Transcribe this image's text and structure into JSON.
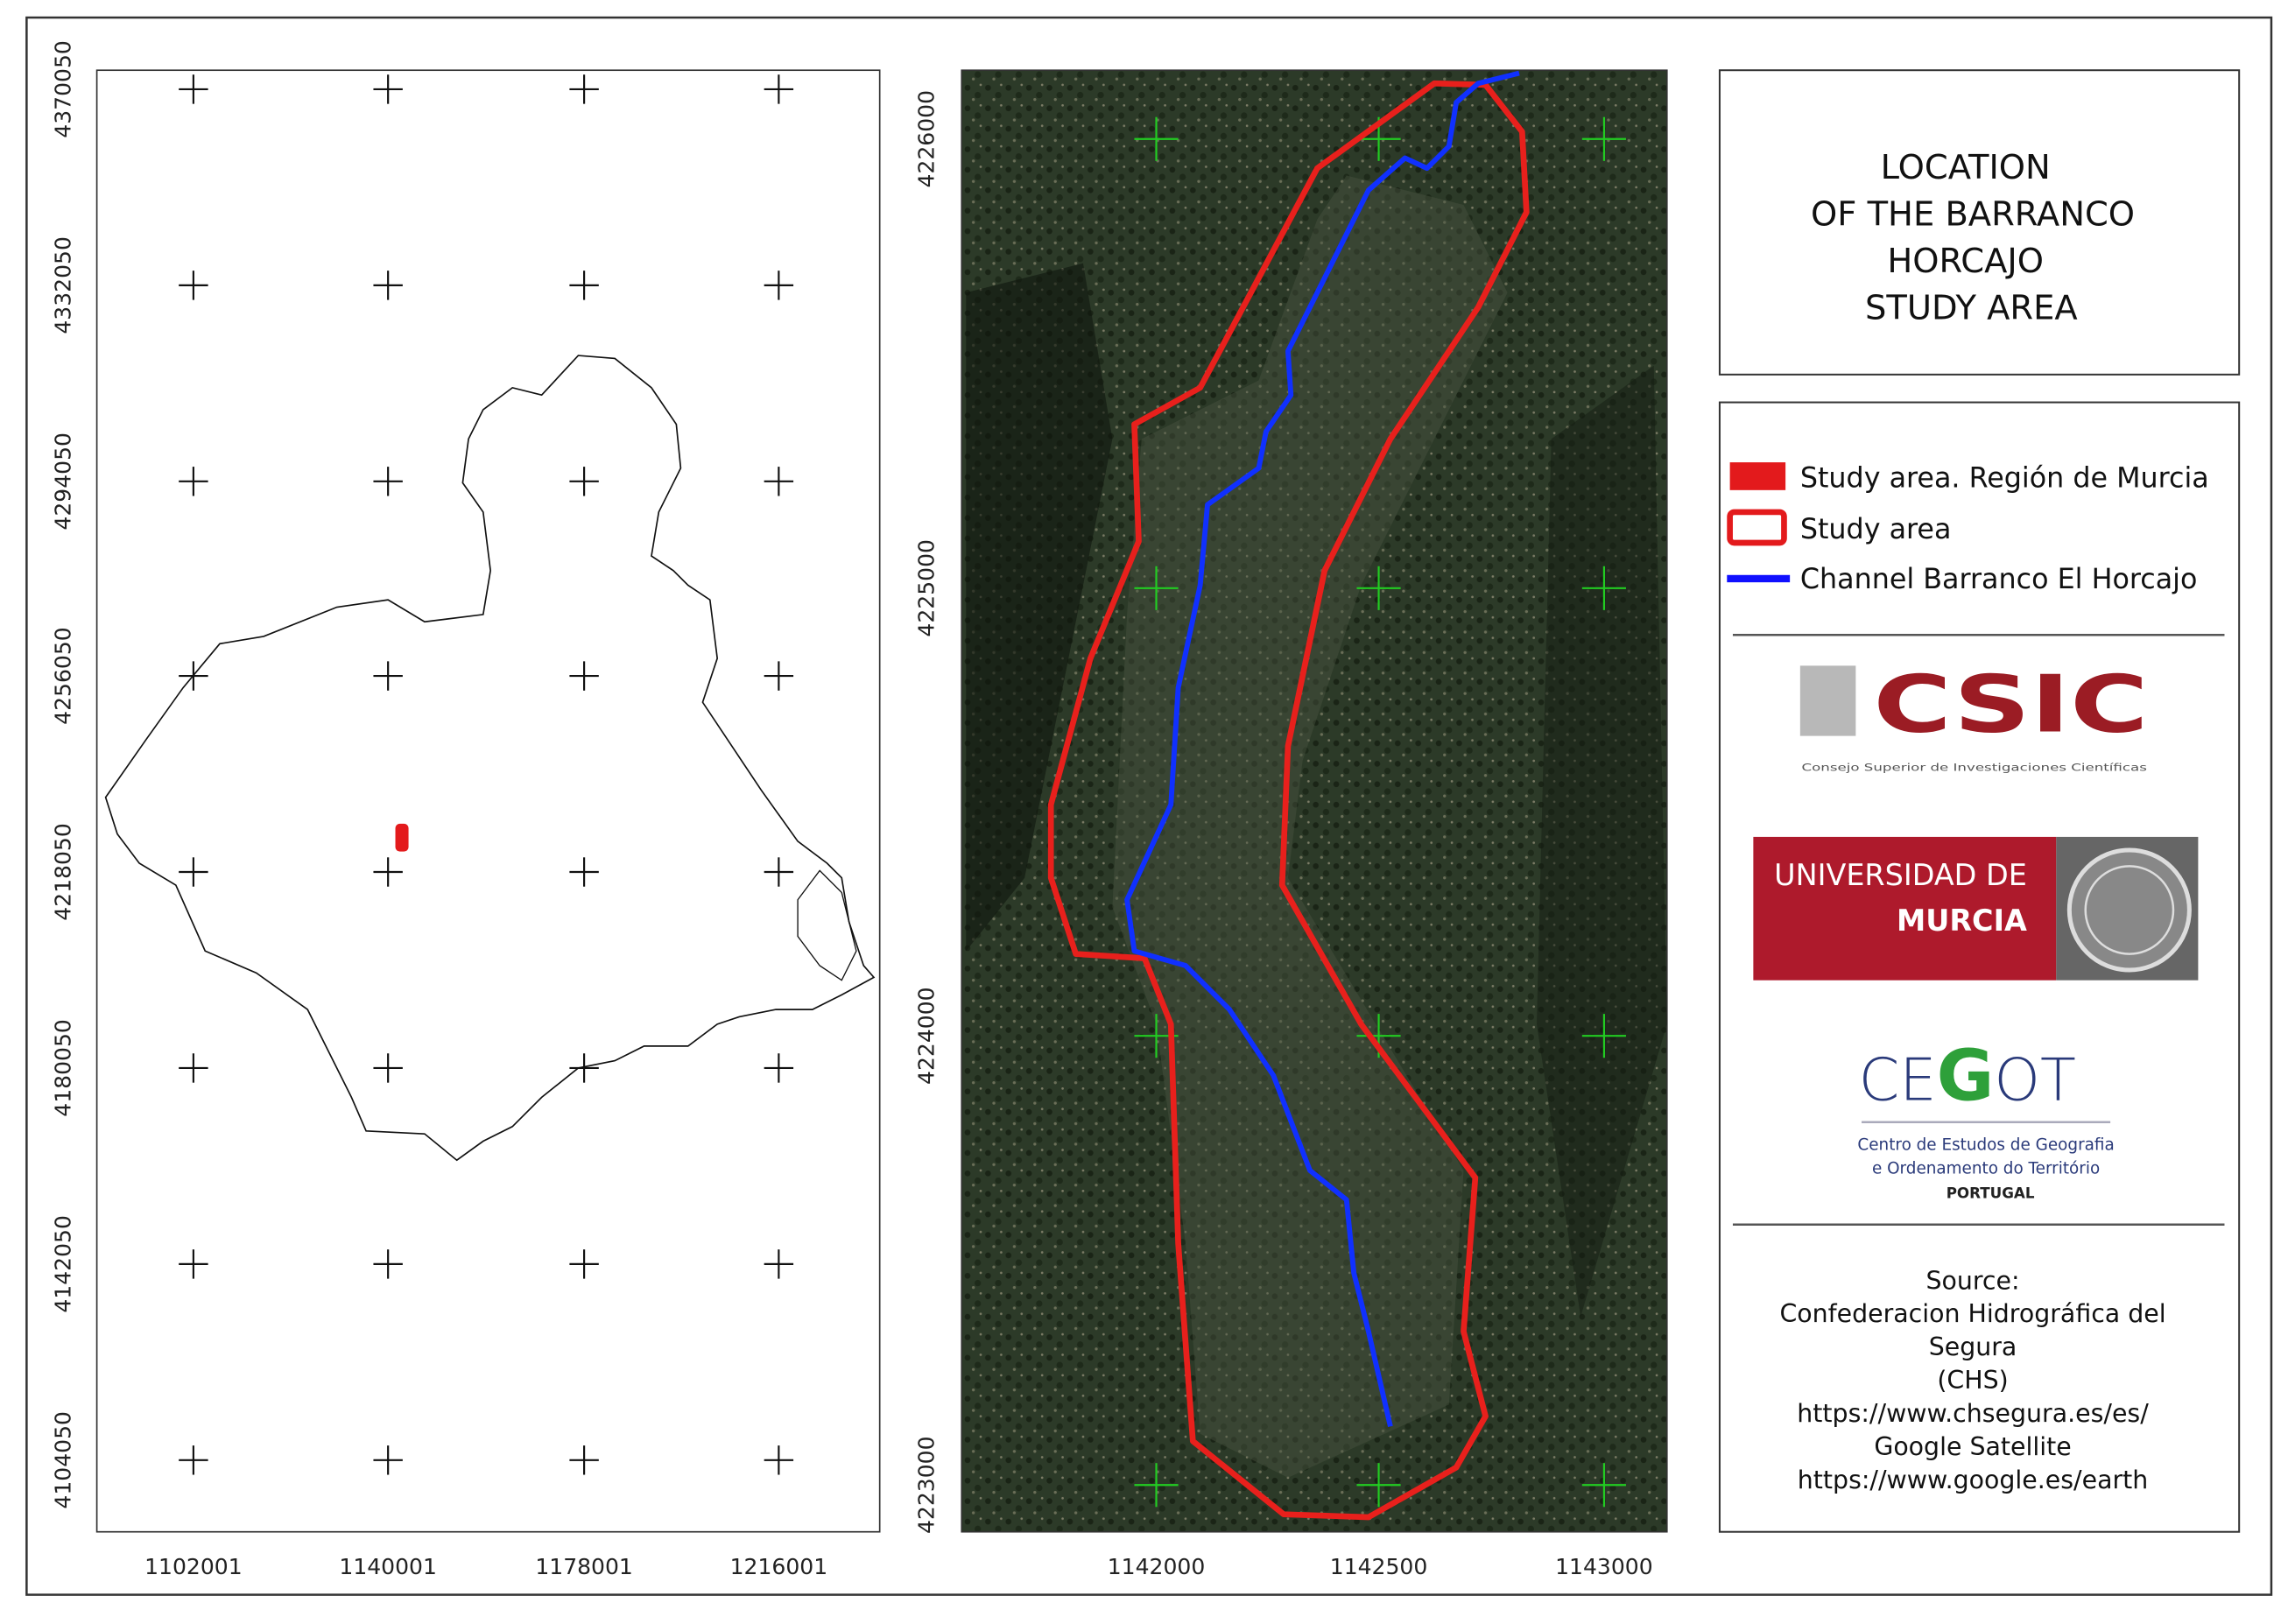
{
  "title": {
    "lines": [
      "LOCATION",
      "OF THE BARRANCO",
      "HORCAJO",
      "STUDY AREA"
    ]
  },
  "overview_map": {
    "x_ticks": [
      "1102001",
      "1140001",
      "1178001",
      "1216001"
    ],
    "y_ticks": [
      "4370050",
      "4332050",
      "4294050",
      "4256050",
      "4218050",
      "4180050",
      "4142050",
      "4104050"
    ],
    "region_outline_color": "#000000",
    "study_area_color": "#e31a1c"
  },
  "detail_map": {
    "basemap": "satellite imagery",
    "x_ticks": [
      "1142000",
      "1142500",
      "1143000"
    ],
    "y_ticks": [
      "4226000",
      "4225000",
      "4224000",
      "4223000"
    ],
    "grid_cross_color": "#22cc22",
    "study_area_color": "#e8201c",
    "channel_color": "#1030ff"
  },
  "legend": {
    "items": [
      {
        "label": "Study area. Región de Murcia",
        "symbol": "filled-red-rect"
      },
      {
        "label": "Study area",
        "symbol": "red-outline-rect"
      },
      {
        "label": "Channel Barranco El Horcajo",
        "symbol": "blue-line"
      }
    ]
  },
  "logos": {
    "csic": {
      "name": "CSIC",
      "subtitle": "Consejo Superior de Investigaciones Científicas",
      "color": "#9b1c24"
    },
    "um": {
      "line1": "UNIVERSIDAD DE",
      "line2": "MURCIA",
      "color": "#ae1a2c"
    },
    "cegot": {
      "name_a": "CE",
      "name_g": "G",
      "name_b": "OT",
      "line1": "Centro de Estudos de Geografia",
      "line2": "e Ordenamento do Território",
      "line3": "PORTUGAL"
    }
  },
  "source": {
    "lines": [
      "Source:",
      "Confederacion Hidrográfica del",
      "Segura",
      "(CHS)",
      "https://www.chsegura.es/es/",
      "Google Satellite",
      "https://www.google.es/earth"
    ]
  }
}
